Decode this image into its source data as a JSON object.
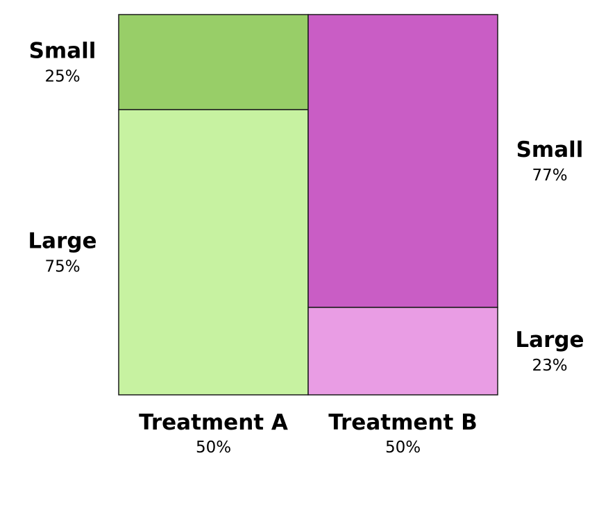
{
  "chart_data": {
    "type": "mosaic",
    "columns": [
      {
        "name": "Treatment A",
        "share": 50,
        "share_label": "50%",
        "segments": [
          {
            "name": "Small",
            "share": 25,
            "share_label": "25%",
            "color": "#98ce68"
          },
          {
            "name": "Large",
            "share": 75,
            "share_label": "75%",
            "color": "#c7f2a1"
          }
        ]
      },
      {
        "name": "Treatment B",
        "share": 50,
        "share_label": "50%",
        "segments": [
          {
            "name": "Small",
            "share": 77,
            "share_label": "77%",
            "color": "#c95dc5"
          },
          {
            "name": "Large",
            "share": 23,
            "share_label": "23%",
            "color": "#e99de4"
          }
        ]
      }
    ]
  }
}
